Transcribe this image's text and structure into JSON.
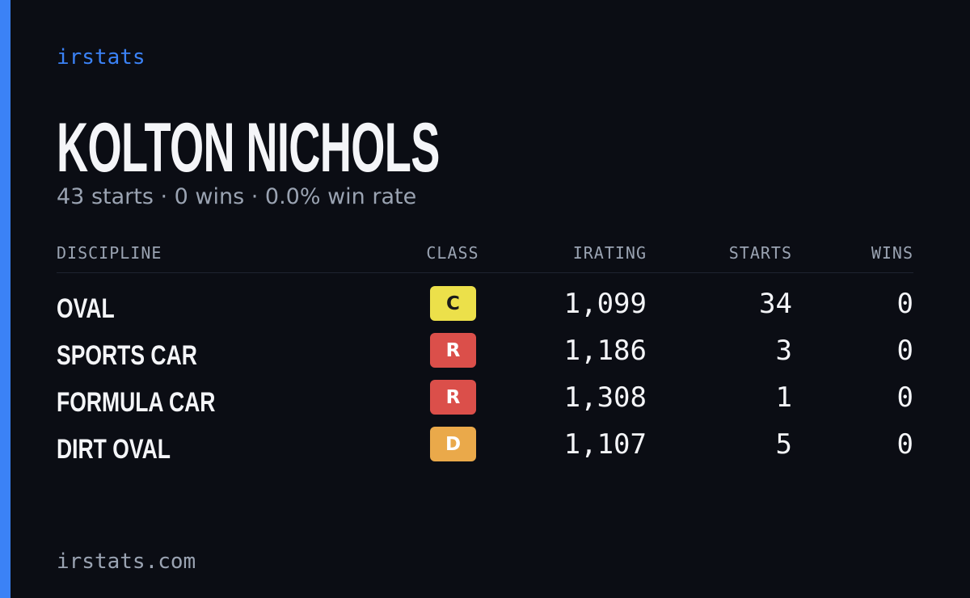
{
  "brand": "irstats",
  "driver": {
    "name": "KOLTON NICHOLS",
    "summary": "43 starts · 0 wins · 0.0% win rate"
  },
  "table": {
    "headers": [
      "DISCIPLINE",
      "CLASS",
      "IRATING",
      "STARTS",
      "WINS"
    ],
    "rows": [
      {
        "discipline": "OVAL",
        "class": "C",
        "class_color": "#ece04a",
        "irating": "1,099",
        "starts": "34",
        "wins": "0"
      },
      {
        "discipline": "SPORTS CAR",
        "class": "R",
        "class_color": "#db4f4a",
        "irating": "1,186",
        "starts": "3",
        "wins": "0"
      },
      {
        "discipline": "FORMULA CAR",
        "class": "R",
        "class_color": "#db4f4a",
        "irating": "1,308",
        "starts": "1",
        "wins": "0"
      },
      {
        "discipline": "DIRT OVAL",
        "class": "D",
        "class_color": "#eaa94a",
        "irating": "1,107",
        "starts": "5",
        "wins": "0"
      }
    ]
  },
  "footer": "irstats.com"
}
